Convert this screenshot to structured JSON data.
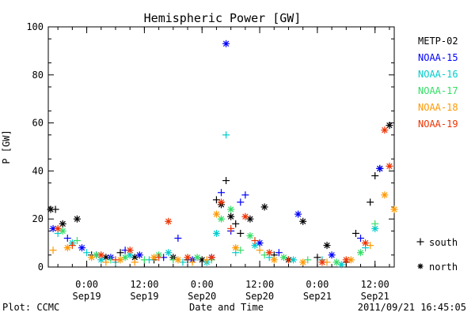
{
  "chart_data": {
    "type": "scatter",
    "title": "Hemispheric Power [GW]",
    "xlabel": "Date and Time",
    "ylabel": "P [GW]",
    "ylim": [
      0,
      100
    ],
    "y_ticks": [
      0,
      20,
      40,
      60,
      80,
      100
    ],
    "xlim": [
      "2011-09-18T16:00",
      "2011-09-21T16:00"
    ],
    "x_ticks": [
      {
        "time": "2011-09-19T00:00",
        "label_top": "0:00",
        "label_bottom": "Sep19"
      },
      {
        "time": "2011-09-19T12:00",
        "label_top": "12:00",
        "label_bottom": "Sep19"
      },
      {
        "time": "2011-09-20T00:00",
        "label_top": "0:00",
        "label_bottom": "Sep20"
      },
      {
        "time": "2011-09-20T12:00",
        "label_top": "12:00",
        "label_bottom": "Sep20"
      },
      {
        "time": "2011-09-21T00:00",
        "label_top": "0:00",
        "label_bottom": "Sep21"
      },
      {
        "time": "2011-09-21T12:00",
        "label_top": "12:00",
        "label_bottom": "Sep21"
      }
    ],
    "grid": false,
    "legend_position": "right",
    "series": [
      {
        "name": "METP-02",
        "color": "#000000",
        "points": [
          {
            "t": "2011-09-18T16:30",
            "y": 24,
            "h": "north"
          },
          {
            "t": "2011-09-18T17:30",
            "y": 24,
            "h": "south"
          },
          {
            "t": "2011-09-18T19:00",
            "y": 18,
            "h": "north"
          },
          {
            "t": "2011-09-18T22:00",
            "y": 20,
            "h": "north"
          },
          {
            "t": "2011-09-19T01:00",
            "y": 5,
            "h": "south"
          },
          {
            "t": "2011-09-19T04:00",
            "y": 4,
            "h": "north"
          },
          {
            "t": "2011-09-19T07:00",
            "y": 6,
            "h": "south"
          },
          {
            "t": "2011-09-19T10:00",
            "y": 4,
            "h": "north"
          },
          {
            "t": "2011-09-19T14:00",
            "y": 3,
            "h": "south"
          },
          {
            "t": "2011-09-19T18:00",
            "y": 4,
            "h": "north"
          },
          {
            "t": "2011-09-19T21:00",
            "y": 3,
            "h": "south"
          },
          {
            "t": "2011-09-20T00:00",
            "y": 3,
            "h": "north"
          },
          {
            "t": "2011-09-20T03:00",
            "y": 28,
            "h": "south"
          },
          {
            "t": "2011-09-20T04:00",
            "y": 26,
            "h": "north"
          },
          {
            "t": "2011-09-20T05:00",
            "y": 36,
            "h": "south"
          },
          {
            "t": "2011-09-20T06:00",
            "y": 21,
            "h": "north"
          },
          {
            "t": "2011-09-20T07:00",
            "y": 18,
            "h": "south"
          },
          {
            "t": "2011-09-20T08:00",
            "y": 14,
            "h": "south"
          },
          {
            "t": "2011-09-20T10:00",
            "y": 20,
            "h": "north"
          },
          {
            "t": "2011-09-20T13:00",
            "y": 25,
            "h": "north"
          },
          {
            "t": "2011-09-20T15:00",
            "y": 5,
            "h": "south"
          },
          {
            "t": "2011-09-20T18:00",
            "y": 3,
            "h": "north"
          },
          {
            "t": "2011-09-20T21:00",
            "y": 19,
            "h": "north"
          },
          {
            "t": "2011-09-21T00:00",
            "y": 4,
            "h": "south"
          },
          {
            "t": "2011-09-21T02:00",
            "y": 9,
            "h": "north"
          },
          {
            "t": "2011-09-21T06:00",
            "y": 2,
            "h": "south"
          },
          {
            "t": "2011-09-21T08:00",
            "y": 14,
            "h": "south"
          },
          {
            "t": "2011-09-21T11:00",
            "y": 27,
            "h": "south"
          },
          {
            "t": "2011-09-21T12:00",
            "y": 38,
            "h": "south"
          },
          {
            "t": "2011-09-21T13:00",
            "y": 41,
            "h": "north"
          },
          {
            "t": "2011-09-21T15:00",
            "y": 59,
            "h": "north"
          }
        ]
      },
      {
        "name": "NOAA-15",
        "color": "#0000ff",
        "points": [
          {
            "t": "2011-09-18T17:00",
            "y": 16,
            "h": "north"
          },
          {
            "t": "2011-09-18T20:00",
            "y": 12,
            "h": "south"
          },
          {
            "t": "2011-09-18T23:00",
            "y": 8,
            "h": "north"
          },
          {
            "t": "2011-09-19T02:00",
            "y": 5,
            "h": "south"
          },
          {
            "t": "2011-09-19T05:00",
            "y": 4,
            "h": "north"
          },
          {
            "t": "2011-09-19T08:00",
            "y": 7,
            "h": "south"
          },
          {
            "t": "2011-09-19T11:00",
            "y": 5,
            "h": "north"
          },
          {
            "t": "2011-09-19T16:00",
            "y": 4,
            "h": "south"
          },
          {
            "t": "2011-09-19T19:00",
            "y": 12,
            "h": "south"
          },
          {
            "t": "2011-09-19T22:00",
            "y": 3,
            "h": "north"
          },
          {
            "t": "2011-09-20T02:00",
            "y": 4,
            "h": "north"
          },
          {
            "t": "2011-09-20T04:00",
            "y": 31,
            "h": "south"
          },
          {
            "t": "2011-09-20T05:00",
            "y": 93,
            "h": "north"
          },
          {
            "t": "2011-09-20T06:00",
            "y": 15,
            "h": "south"
          },
          {
            "t": "2011-09-20T08:00",
            "y": 27,
            "h": "south"
          },
          {
            "t": "2011-09-20T09:00",
            "y": 30,
            "h": "south"
          },
          {
            "t": "2011-09-20T12:00",
            "y": 10,
            "h": "north"
          },
          {
            "t": "2011-09-20T16:00",
            "y": 6,
            "h": "south"
          },
          {
            "t": "2011-09-20T20:00",
            "y": 22,
            "h": "north"
          },
          {
            "t": "2011-09-21T03:00",
            "y": 5,
            "h": "north"
          },
          {
            "t": "2011-09-21T09:00",
            "y": 12,
            "h": "south"
          },
          {
            "t": "2011-09-21T13:00",
            "y": 41,
            "h": "north"
          }
        ]
      },
      {
        "name": "NOAA-16",
        "color": "#00cccc",
        "points": [
          {
            "t": "2011-09-18T18:00",
            "y": 14,
            "h": "south"
          },
          {
            "t": "2011-09-18T21:00",
            "y": 10,
            "h": "north"
          },
          {
            "t": "2011-09-19T00:00",
            "y": 6,
            "h": "south"
          },
          {
            "t": "2011-09-19T03:00",
            "y": 3,
            "h": "north"
          },
          {
            "t": "2011-09-19T06:00",
            "y": 2,
            "h": "south"
          },
          {
            "t": "2011-09-19T09:00",
            "y": 5,
            "h": "north"
          },
          {
            "t": "2011-09-19T13:00",
            "y": 3,
            "h": "south"
          },
          {
            "t": "2011-09-19T17:00",
            "y": 6,
            "h": "north"
          },
          {
            "t": "2011-09-19T20:00",
            "y": 2,
            "h": "south"
          },
          {
            "t": "2011-09-20T01:00",
            "y": 2,
            "h": "north"
          },
          {
            "t": "2011-09-20T03:00",
            "y": 14,
            "h": "north"
          },
          {
            "t": "2011-09-20T05:00",
            "y": 55,
            "h": "south"
          },
          {
            "t": "2011-09-20T07:00",
            "y": 6,
            "h": "south"
          },
          {
            "t": "2011-09-20T11:00",
            "y": 9,
            "h": "north"
          },
          {
            "t": "2011-09-20T14:00",
            "y": 4,
            "h": "south"
          },
          {
            "t": "2011-09-20T19:00",
            "y": 3,
            "h": "north"
          },
          {
            "t": "2011-09-21T01:00",
            "y": 3,
            "h": "south"
          },
          {
            "t": "2011-09-21T05:00",
            "y": 1,
            "h": "north"
          },
          {
            "t": "2011-09-21T10:00",
            "y": 8,
            "h": "south"
          },
          {
            "t": "2011-09-21T12:00",
            "y": 16,
            "h": "north"
          }
        ]
      },
      {
        "name": "NOAA-17",
        "color": "#33dd66",
        "points": [
          {
            "t": "2011-09-18T19:00",
            "y": 15,
            "h": "north"
          },
          {
            "t": "2011-09-18T22:00",
            "y": 11,
            "h": "south"
          },
          {
            "t": "2011-09-19T02:00",
            "y": 5,
            "h": "north"
          },
          {
            "t": "2011-09-19T05:00",
            "y": 3,
            "h": "south"
          },
          {
            "t": "2011-09-19T08:00",
            "y": 4,
            "h": "north"
          },
          {
            "t": "2011-09-19T12:00",
            "y": 3,
            "h": "south"
          },
          {
            "t": "2011-09-19T15:00",
            "y": 5,
            "h": "north"
          },
          {
            "t": "2011-09-19T18:00",
            "y": 3,
            "h": "south"
          },
          {
            "t": "2011-09-19T23:00",
            "y": 4,
            "h": "north"
          },
          {
            "t": "2011-09-20T02:00",
            "y": 3,
            "h": "south"
          },
          {
            "t": "2011-09-20T04:00",
            "y": 20,
            "h": "north"
          },
          {
            "t": "2011-09-20T06:00",
            "y": 24,
            "h": "north"
          },
          {
            "t": "2011-09-20T08:00",
            "y": 7,
            "h": "south"
          },
          {
            "t": "2011-09-20T10:00",
            "y": 13,
            "h": "north"
          },
          {
            "t": "2011-09-20T13:00",
            "y": 5,
            "h": "south"
          },
          {
            "t": "2011-09-20T17:00",
            "y": 4,
            "h": "north"
          },
          {
            "t": "2011-09-20T22:00",
            "y": 3,
            "h": "south"
          },
          {
            "t": "2011-09-21T04:00",
            "y": 2,
            "h": "north"
          },
          {
            "t": "2011-09-21T09:00",
            "y": 6,
            "h": "north"
          },
          {
            "t": "2011-09-21T12:00",
            "y": 18,
            "h": "south"
          }
        ]
      },
      {
        "name": "NOAA-18",
        "color": "#ff9900",
        "points": [
          {
            "t": "2011-09-18T17:00",
            "y": 7,
            "h": "south"
          },
          {
            "t": "2011-09-18T20:00",
            "y": 8,
            "h": "north"
          },
          {
            "t": "2011-09-19T01:00",
            "y": 4,
            "h": "north"
          },
          {
            "t": "2011-09-19T04:00",
            "y": 2,
            "h": "south"
          },
          {
            "t": "2011-09-19T07:00",
            "y": 3,
            "h": "north"
          },
          {
            "t": "2011-09-19T10:00",
            "y": 2,
            "h": "south"
          },
          {
            "t": "2011-09-19T14:00",
            "y": 4,
            "h": "north"
          },
          {
            "t": "2011-09-19T19:00",
            "y": 3,
            "h": "north"
          },
          {
            "t": "2011-09-19T22:00",
            "y": 2,
            "h": "south"
          },
          {
            "t": "2011-09-20T01:00",
            "y": 3,
            "h": "south"
          },
          {
            "t": "2011-09-20T03:00",
            "y": 22,
            "h": "north"
          },
          {
            "t": "2011-09-20T07:00",
            "y": 8,
            "h": "north"
          },
          {
            "t": "2011-09-20T12:00",
            "y": 7,
            "h": "south"
          },
          {
            "t": "2011-09-20T15:00",
            "y": 3,
            "h": "north"
          },
          {
            "t": "2011-09-20T21:00",
            "y": 2,
            "h": "north"
          },
          {
            "t": "2011-09-21T02:00",
            "y": 2,
            "h": "south"
          },
          {
            "t": "2011-09-21T07:00",
            "y": 3,
            "h": "north"
          },
          {
            "t": "2011-09-21T11:00",
            "y": 9,
            "h": "south"
          },
          {
            "t": "2011-09-21T14:00",
            "y": 30,
            "h": "north"
          },
          {
            "t": "2011-09-21T16:00",
            "y": 24,
            "h": "north"
          }
        ]
      },
      {
        "name": "NOAA-19",
        "color": "#ee3300",
        "points": [
          {
            "t": "2011-09-18T18:00",
            "y": 16,
            "h": "north"
          },
          {
            "t": "2011-09-18T21:00",
            "y": 9,
            "h": "south"
          },
          {
            "t": "2011-09-19T03:00",
            "y": 5,
            "h": "north"
          },
          {
            "t": "2011-09-19T06:00",
            "y": 3,
            "h": "south"
          },
          {
            "t": "2011-09-19T09:00",
            "y": 7,
            "h": "north"
          },
          {
            "t": "2011-09-19T15:00",
            "y": 4,
            "h": "south"
          },
          {
            "t": "2011-09-19T17:00",
            "y": 19,
            "h": "north"
          },
          {
            "t": "2011-09-19T21:00",
            "y": 4,
            "h": "north"
          },
          {
            "t": "2011-09-20T02:00",
            "y": 4,
            "h": "north"
          },
          {
            "t": "2011-09-20T04:00",
            "y": 27,
            "h": "north"
          },
          {
            "t": "2011-09-20T06:00",
            "y": 16,
            "h": "south"
          },
          {
            "t": "2011-09-20T09:00",
            "y": 21,
            "h": "north"
          },
          {
            "t": "2011-09-20T11:00",
            "y": 11,
            "h": "south"
          },
          {
            "t": "2011-09-20T14:00",
            "y": 6,
            "h": "north"
          },
          {
            "t": "2011-09-20T18:00",
            "y": 3,
            "h": "south"
          },
          {
            "t": "2011-09-21T01:00",
            "y": 2,
            "h": "north"
          },
          {
            "t": "2011-09-21T06:00",
            "y": 3,
            "h": "north"
          },
          {
            "t": "2011-09-21T10:00",
            "y": 10,
            "h": "north"
          },
          {
            "t": "2011-09-21T14:00",
            "y": 57,
            "h": "north"
          },
          {
            "t": "2011-09-21T15:00",
            "y": 42,
            "h": "north"
          }
        ]
      }
    ],
    "marker_legend": [
      {
        "symbol": "+",
        "label": "south"
      },
      {
        "symbol": "*",
        "label": "north"
      }
    ]
  },
  "footer": {
    "left": "Plot: CCMC",
    "center": "Date and Time",
    "right": "2011/09/21 16:45:05"
  }
}
